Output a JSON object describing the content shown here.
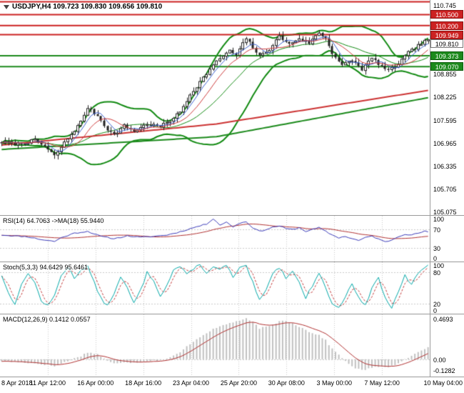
{
  "header": {
    "symbol": "USDJPY,H4",
    "ohlc_text": "109.723 109.830 109.656 109.810",
    "title": "USDJPY,H4 109.723 109.830 109.656 109.810"
  },
  "colors": {
    "resistance": "#cc2222",
    "support": "#1c8a1c",
    "bollinger": "#128a12",
    "trend_red": "#cc3333",
    "candle": "#222222",
    "ma_fast": "#3a5fcd",
    "ma_slow": "#cd3a3a",
    "rsi_line": "#3a3ab8",
    "rsi_ma": "#b03030",
    "stoch_line": "#00a7a7",
    "stoch_signal": "#c23b3b",
    "macd_hist": "#c0c0c0",
    "macd_signal": "#b03030",
    "grid": "#c9c9c9",
    "separator": "#9a9a9a"
  },
  "time_axis": {
    "labels": [
      "8 Apr 2018",
      "11 Apr 12:00",
      "16 Apr 00:00",
      "18 Apr 16:00",
      "23 Apr 04:00",
      "25 Apr 20:00",
      "30 Apr 08:00",
      "3 May 00:00",
      "7 May 12:00",
      "10 May 04:00"
    ]
  },
  "chart_data": [
    {
      "type": "candlestick",
      "name": "main",
      "symbol": "USDJPY",
      "timeframe": "H4",
      "open": 109.723,
      "high": 109.83,
      "low": 109.656,
      "close": 109.81,
      "ylim": [
        105.0,
        110.9
      ],
      "y_ticks": [
        110.745,
        108.855,
        108.225,
        107.595,
        106.965,
        106.335,
        105.705,
        105.075
      ],
      "levels": {
        "resistance": [
          110.85,
          110.5,
          110.2,
          109.949
        ],
        "resistance_labels": [
          "",
          "110.500",
          "110.200",
          "109.949"
        ],
        "support": [
          109.373,
          109.07
        ],
        "support_labels": [
          "109.373",
          "109.070"
        ],
        "current_price": 109.81,
        "current_price_label": "109.810"
      },
      "candles_count": 130,
      "close_path_keypoints": [
        [
          0,
          107.0
        ],
        [
          5,
          106.95
        ],
        [
          10,
          107.05
        ],
        [
          13,
          106.88
        ],
        [
          16,
          106.62
        ],
        [
          20,
          107.1
        ],
        [
          24,
          107.55
        ],
        [
          26,
          107.95
        ],
        [
          29,
          107.72
        ],
        [
          32,
          107.35
        ],
        [
          34,
          107.2
        ],
        [
          37,
          107.45
        ],
        [
          40,
          107.3
        ],
        [
          44,
          107.5
        ],
        [
          48,
          107.42
        ],
        [
          51,
          107.6
        ],
        [
          54,
          107.82
        ],
        [
          57,
          108.3
        ],
        [
          60,
          108.65
        ],
        [
          63,
          109.0
        ],
        [
          66,
          109.3
        ],
        [
          69,
          109.5
        ],
        [
          71,
          109.38
        ],
        [
          74,
          109.85
        ],
        [
          76,
          109.6
        ],
        [
          78,
          109.35
        ],
        [
          81,
          109.55
        ],
        [
          84,
          109.9
        ],
        [
          87,
          109.68
        ],
        [
          90,
          109.85
        ],
        [
          93,
          109.72
        ],
        [
          96,
          110.0
        ],
        [
          98,
          109.85
        ],
        [
          100,
          109.45
        ],
        [
          103,
          109.1
        ],
        [
          106,
          109.25
        ],
        [
          109,
          109.0
        ],
        [
          112,
          109.3
        ],
        [
          115,
          109.08
        ],
        [
          117,
          108.95
        ],
        [
          120,
          109.15
        ],
        [
          123,
          109.45
        ],
        [
          126,
          109.65
        ],
        [
          129,
          109.81
        ]
      ],
      "noise": {
        "seed": 7,
        "close_amp": 0.08,
        "wick_amp": 0.12
      },
      "overlays": {
        "bollinger_period": 20,
        "bollinger_dev": 2,
        "ma_fast": 5,
        "ma_slow": 10,
        "trend_lines": [
          {
            "name": "trend-red",
            "points": [
              [
                0,
                106.92
              ],
              [
                65,
                107.5
              ],
              [
                129,
                108.42
              ]
            ]
          },
          {
            "name": "trend-green",
            "points": [
              [
                0,
                106.8
              ],
              [
                65,
                107.15
              ],
              [
                129,
                108.22
              ]
            ]
          }
        ]
      }
    },
    {
      "type": "line",
      "name": "rsi",
      "label": "RSI(14) 64.7063  ->MA(18) 55.9440",
      "current": 64.7063,
      "ma_current": 55.944,
      "ylim": [
        0,
        100
      ],
      "y_ticks": [
        100,
        70,
        30,
        0
      ],
      "levels": [
        70,
        30
      ],
      "ma_period": 18,
      "seed": 11,
      "noise_amp": 1.2,
      "keypoints": [
        [
          0,
          58
        ],
        [
          4,
          56
        ],
        [
          8,
          54
        ],
        [
          12,
          48
        ],
        [
          16,
          44
        ],
        [
          18,
          52
        ],
        [
          22,
          62
        ],
        [
          26,
          66
        ],
        [
          30,
          55
        ],
        [
          34,
          50
        ],
        [
          38,
          56
        ],
        [
          42,
          53
        ],
        [
          46,
          55
        ],
        [
          50,
          58
        ],
        [
          54,
          65
        ],
        [
          58,
          74
        ],
        [
          62,
          82
        ],
        [
          64,
          94
        ],
        [
          66,
          80
        ],
        [
          68,
          86
        ],
        [
          70,
          76
        ],
        [
          72,
          84
        ],
        [
          74,
          87
        ],
        [
          76,
          74
        ],
        [
          78,
          66
        ],
        [
          80,
          70
        ],
        [
          82,
          75
        ],
        [
          84,
          78
        ],
        [
          86,
          72
        ],
        [
          88,
          70
        ],
        [
          90,
          74
        ],
        [
          92,
          66
        ],
        [
          94,
          70
        ],
        [
          96,
          74
        ],
        [
          98,
          66
        ],
        [
          100,
          58
        ],
        [
          102,
          52
        ],
        [
          104,
          55
        ],
        [
          106,
          50
        ],
        [
          108,
          46
        ],
        [
          110,
          52
        ],
        [
          112,
          56
        ],
        [
          114,
          49
        ],
        [
          116,
          43
        ],
        [
          118,
          47
        ],
        [
          120,
          55
        ],
        [
          122,
          60
        ],
        [
          124,
          58
        ],
        [
          126,
          62
        ],
        [
          128,
          66
        ],
        [
          129,
          64.7
        ]
      ]
    },
    {
      "type": "line",
      "name": "stochastic",
      "label": "Stoch(5,3,3) 94.6429 95.6461",
      "current": 94.6429,
      "signal_current": 95.6461,
      "ylim": [
        0,
        100
      ],
      "y_ticks": [
        100,
        80,
        20,
        0
      ],
      "levels": [
        80,
        20
      ],
      "signal_period": 3,
      "seed": 13,
      "noise_amp": 2.5,
      "keypoints": [
        [
          0,
          75
        ],
        [
          2,
          40
        ],
        [
          4,
          20
        ],
        [
          6,
          55
        ],
        [
          8,
          80
        ],
        [
          10,
          60
        ],
        [
          12,
          25
        ],
        [
          14,
          15
        ],
        [
          16,
          35
        ],
        [
          18,
          75
        ],
        [
          20,
          90
        ],
        [
          22,
          70
        ],
        [
          24,
          85
        ],
        [
          26,
          92
        ],
        [
          28,
          60
        ],
        [
          30,
          30
        ],
        [
          32,
          15
        ],
        [
          34,
          40
        ],
        [
          36,
          70
        ],
        [
          38,
          50
        ],
        [
          40,
          20
        ],
        [
          42,
          45
        ],
        [
          44,
          80
        ],
        [
          46,
          65
        ],
        [
          48,
          35
        ],
        [
          50,
          55
        ],
        [
          52,
          85
        ],
        [
          54,
          92
        ],
        [
          56,
          75
        ],
        [
          58,
          88
        ],
        [
          60,
          95
        ],
        [
          62,
          80
        ],
        [
          64,
          90
        ],
        [
          66,
          85
        ],
        [
          68,
          95
        ],
        [
          70,
          70
        ],
        [
          72,
          88
        ],
        [
          74,
          92
        ],
        [
          76,
          60
        ],
        [
          78,
          25
        ],
        [
          80,
          45
        ],
        [
          82,
          80
        ],
        [
          84,
          90
        ],
        [
          86,
          70
        ],
        [
          88,
          85
        ],
        [
          90,
          60
        ],
        [
          92,
          30
        ],
        [
          94,
          55
        ],
        [
          96,
          80
        ],
        [
          98,
          50
        ],
        [
          100,
          20
        ],
        [
          102,
          10
        ],
        [
          104,
          35
        ],
        [
          106,
          60
        ],
        [
          108,
          30
        ],
        [
          110,
          15
        ],
        [
          112,
          50
        ],
        [
          114,
          70
        ],
        [
          116,
          30
        ],
        [
          118,
          12
        ],
        [
          120,
          40
        ],
        [
          122,
          75
        ],
        [
          124,
          55
        ],
        [
          126,
          80
        ],
        [
          128,
          90
        ],
        [
          129,
          94.6
        ]
      ]
    },
    {
      "type": "bar",
      "name": "macd",
      "label": "MACD(12,26,9) 0.1412 0.0557",
      "current": 0.1412,
      "signal_current": 0.0557,
      "ylim": [
        -0.2,
        0.52
      ],
      "y_ticks": [
        0.4693,
        0,
        -0.1282
      ],
      "y_tick_labels": [
        "0.4693",
        "0.00",
        "-0.1282"
      ],
      "signal_period": 9,
      "seed": 17,
      "noise_amp": 0.008,
      "keypoints": [
        [
          0,
          -0.02
        ],
        [
          8,
          -0.04
        ],
        [
          13,
          -0.06
        ],
        [
          16,
          -0.08
        ],
        [
          20,
          -0.02
        ],
        [
          24,
          0.04
        ],
        [
          26,
          0.08
        ],
        [
          29,
          0.06
        ],
        [
          32,
          -0.02
        ],
        [
          34,
          -0.05
        ],
        [
          37,
          -0.03
        ],
        [
          40,
          -0.04
        ],
        [
          44,
          -0.02
        ],
        [
          48,
          -0.01
        ],
        [
          51,
          0.02
        ],
        [
          54,
          0.08
        ],
        [
          57,
          0.18
        ],
        [
          60,
          0.26
        ],
        [
          63,
          0.33
        ],
        [
          66,
          0.38
        ],
        [
          69,
          0.42
        ],
        [
          72,
          0.45
        ],
        [
          74,
          0.469
        ],
        [
          76,
          0.43
        ],
        [
          78,
          0.36
        ],
        [
          81,
          0.38
        ],
        [
          84,
          0.44
        ],
        [
          86,
          0.45
        ],
        [
          88,
          0.42
        ],
        [
          90,
          0.38
        ],
        [
          93,
          0.32
        ],
        [
          96,
          0.28
        ],
        [
          98,
          0.22
        ],
        [
          100,
          0.12
        ],
        [
          103,
          0.02
        ],
        [
          105,
          -0.06
        ],
        [
          107,
          -0.1
        ],
        [
          109,
          -0.128
        ],
        [
          112,
          -0.1
        ],
        [
          115,
          -0.08
        ],
        [
          117,
          -0.09
        ],
        [
          120,
          -0.05
        ],
        [
          123,
          0.02
        ],
        [
          126,
          0.08
        ],
        [
          129,
          0.141
        ]
      ]
    }
  ]
}
